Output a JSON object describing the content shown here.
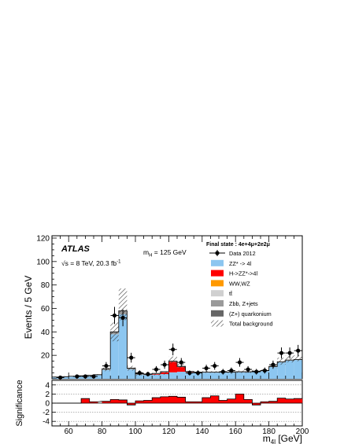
{
  "chart_data": {
    "type": "bar",
    "x_bin_centers": [
      52.5,
      57.5,
      62.5,
      67.5,
      72.5,
      77.5,
      82.5,
      87.5,
      92.5,
      97.5,
      102.5,
      107.5,
      112.5,
      117.5,
      122.5,
      127.5,
      132.5,
      137.5,
      142.5,
      147.5,
      152.5,
      157.5,
      162.5,
      167.5,
      172.5,
      177.5,
      182.5,
      187.5,
      192.5,
      197.5
    ],
    "bin_width": 5,
    "xlim": [
      50,
      200
    ],
    "ylim": [
      0,
      122
    ],
    "xticks": [
      60,
      80,
      100,
      120,
      140,
      160,
      180,
      200
    ],
    "yticks": [
      20,
      40,
      60,
      80,
      100,
      120
    ],
    "xlabel": "m",
    "xlabel_sub": "4l",
    "xlabel_unit": " [GeV]",
    "ylabel": "Events / 5 GeV",
    "atlas_label": "ATLAS",
    "energy_label": "√s = 8 TeV, 20.3 fb",
    "energy_sup": "-1",
    "mass_label": "m",
    "mass_sub": "H",
    "mass_value": " = 125 GeV",
    "final_state": "Final state : 4e+4μ+2e2μ",
    "legend": [
      {
        "label": "Data 2012",
        "kind": "data"
      },
      {
        "label": "ZZ* -> 4l",
        "kind": "fill",
        "color": "#8cc6f0"
      },
      {
        "label": "H->ZZ*->4l",
        "kind": "fill",
        "color": "#ff0000"
      },
      {
        "label": "WW,WZ",
        "kind": "fill",
        "color": "#ff9900"
      },
      {
        "label": "tt̄",
        "kind": "fill",
        "color": "#d0d0d0"
      },
      {
        "label": "Zbb, Z+jets",
        "kind": "fill",
        "color": "#9a9a9a"
      },
      {
        "label": "(Z+) quarkonium",
        "kind": "fill",
        "color": "#666666"
      },
      {
        "label": "Total background",
        "kind": "hatch"
      }
    ],
    "series": [
      {
        "name": "ZZ* -> 4l",
        "color": "#8cc6f0",
        "values": [
          1.2,
          1.5,
          1.8,
          2.2,
          2.5,
          3,
          7.5,
          38,
          55,
          8,
          3.5,
          3.2,
          3.5,
          4,
          5.5,
          6,
          5.5,
          5.2,
          5.2,
          5.2,
          5.2,
          5.3,
          5.5,
          5.5,
          6,
          6.5,
          10,
          14,
          15.5,
          16
        ]
      },
      {
        "name": "H->ZZ*->4l",
        "color": "#ff0000",
        "values": [
          0,
          0,
          0,
          0,
          0,
          0,
          0,
          0,
          0,
          0,
          0,
          0,
          0.5,
          1.5,
          9,
          4,
          0.3,
          0,
          0,
          0,
          0,
          0,
          0,
          0,
          0,
          0,
          0,
          0,
          0,
          0
        ]
      },
      {
        "name": "WW,WZ",
        "color": "#ff9900",
        "values": [
          0,
          0,
          0,
          0,
          0,
          0,
          0,
          0,
          0,
          0,
          0,
          0,
          0,
          0,
          0,
          0,
          0,
          0,
          0,
          0,
          0,
          0,
          0,
          0,
          0,
          0,
          0,
          0,
          0,
          0
        ]
      },
      {
        "name": "tt̄",
        "color": "#d0d0d0",
        "values": [
          0,
          0,
          0,
          0,
          0,
          0,
          0,
          0,
          0,
          0,
          0,
          0,
          0,
          0,
          0,
          0,
          0,
          0,
          0,
          0,
          0,
          0,
          0,
          0,
          0,
          0,
          0,
          0,
          0,
          0
        ]
      },
      {
        "name": "Zbb, Z+jets",
        "color": "#9a9a9a",
        "values": [
          0.3,
          0.3,
          0.4,
          0.4,
          0.5,
          0.5,
          1,
          2,
          3,
          1,
          0.8,
          0.6,
          0.6,
          0.6,
          0.6,
          0.6,
          0.5,
          0.5,
          0.5,
          0.5,
          0.5,
          0.5,
          0.5,
          0.5,
          0.5,
          0.5,
          0.5,
          0.5,
          0.5,
          0.5
        ]
      },
      {
        "name": "(Z+) quarkonium",
        "color": "#666666",
        "values": [
          0,
          0,
          0,
          0,
          0,
          0,
          0,
          0,
          0,
          0,
          0,
          0,
          0,
          0,
          0,
          0,
          0,
          0,
          0,
          0,
          0,
          0,
          0,
          0,
          0,
          0,
          0,
          0,
          0,
          0
        ]
      }
    ],
    "hatch_band": {
      "name": "Total background",
      "low": [
        1.2,
        1.5,
        1.8,
        2.2,
        2.5,
        3,
        6.5,
        32,
        50,
        7,
        3,
        3,
        3,
        3.5,
        13,
        9,
        5,
        5,
        5,
        5,
        5,
        5,
        5,
        5,
        5.5,
        6,
        9,
        12,
        14,
        15
      ],
      "high": [
        2,
        2.2,
        2.6,
        3,
        3.4,
        4,
        9.5,
        48,
        77,
        11,
        5,
        4.5,
        5,
        6,
        19,
        13,
        6.5,
        6.5,
        6.5,
        6.5,
        6.5,
        6.8,
        7,
        7,
        7.5,
        8,
        12,
        18,
        20,
        20
      ]
    },
    "data_points": {
      "name": "Data 2012",
      "x": [
        55,
        65,
        70,
        75,
        82.5,
        87.5,
        92.5,
        97.5,
        102.5,
        107.5,
        112.5,
        117.5,
        122.5,
        127.5,
        132.5,
        137.5,
        142.5,
        147.5,
        152.5,
        157.5,
        162.5,
        167.5,
        172.5,
        177.5,
        182.5,
        187.5,
        192.5,
        197.5
      ],
      "y": [
        1,
        2,
        2,
        2,
        11,
        54,
        52,
        18,
        5,
        4,
        8,
        12,
        25,
        14,
        5,
        5,
        9,
        11,
        6,
        7,
        14,
        8,
        6,
        7,
        12,
        22,
        22,
        24
      ],
      "err": [
        1,
        1.4,
        1.4,
        1.4,
        3.3,
        7.3,
        7.2,
        4.2,
        2.2,
        2,
        2.8,
        3.5,
        5,
        3.7,
        2.2,
        2.2,
        3,
        3.3,
        2.4,
        2.6,
        3.7,
        2.8,
        2.4,
        2.6,
        3.5,
        4.7,
        4.7,
        4.9
      ]
    },
    "significance": {
      "ylabel": "Significance",
      "ylim": [
        -5,
        5
      ],
      "yticks": [
        -4,
        -2,
        0,
        2,
        4
      ],
      "values": [
        0,
        0,
        1,
        0.3,
        0.4,
        0.8,
        0.7,
        -0.4,
        0.5,
        0.6,
        1.2,
        1.4,
        1.5,
        1.3,
        0.3,
        0.3,
        1.2,
        1.6,
        0.6,
        0.9,
        2,
        0.8,
        -0.4,
        0.3,
        0.4,
        1.1,
        0.9,
        1
      ]
    }
  }
}
